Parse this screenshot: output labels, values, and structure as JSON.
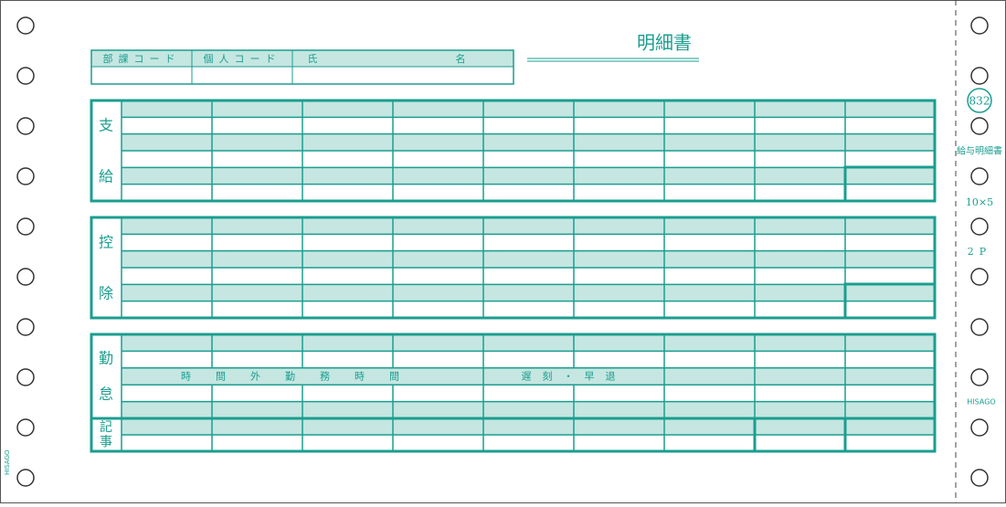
{
  "header": {
    "title": "明細書",
    "fields": [
      "部課コード",
      "個人コード",
      "氏",
      "名"
    ]
  },
  "sections": [
    {
      "label": [
        "支",
        "給"
      ]
    },
    {
      "label": [
        "控",
        "除"
      ]
    },
    {
      "label": [
        "勤",
        "怠"
      ]
    }
  ],
  "remarks": {
    "label": [
      "記",
      "事"
    ]
  },
  "attendance": {
    "labels": [
      "時間外勤務時間",
      "遅刻・早退"
    ]
  },
  "side": {
    "code": "832",
    "product": "給与明細書",
    "size": "10×5",
    "parts": "2P",
    "brand": "HISAGO"
  }
}
